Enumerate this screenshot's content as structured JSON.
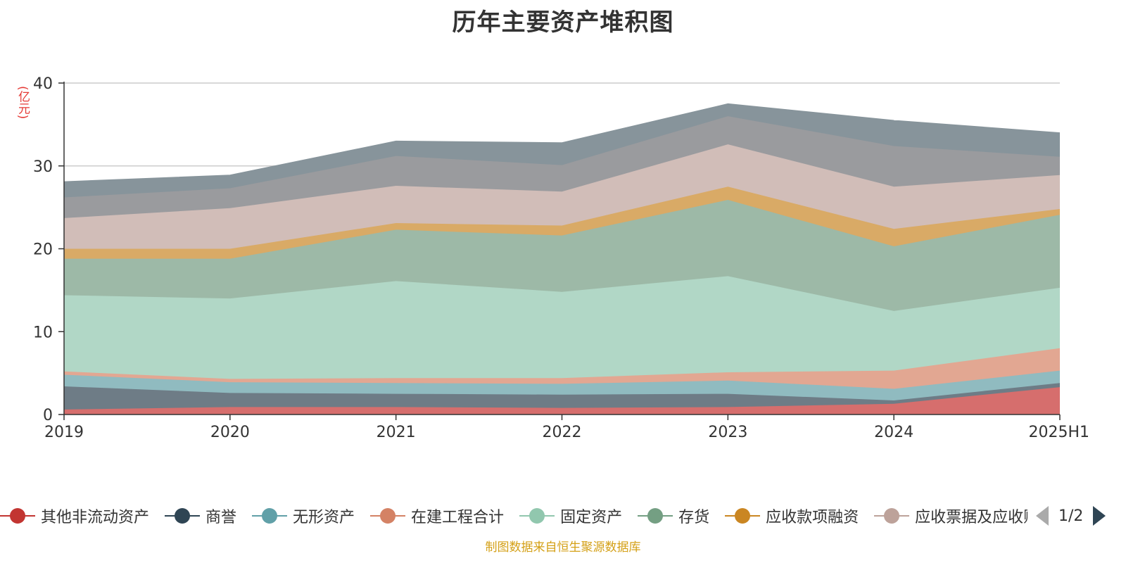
{
  "chart_data": {
    "type": "area",
    "stacked": true,
    "title": "历年主要资产堆积图",
    "unit_label": "(亿元)",
    "x": [
      "2019",
      "2020",
      "2021",
      "2022",
      "2023",
      "2024",
      "2025H1"
    ],
    "ylim": [
      0,
      40
    ],
    "yticks": [
      0,
      10,
      20,
      30,
      40
    ],
    "grid": true,
    "legend_position": "bottom",
    "series": [
      {
        "name": "其他非流动资产",
        "color": "#c23531",
        "area_color": "#d66e6d",
        "values": [
          0.6,
          0.9,
          0.9,
          0.8,
          0.9,
          1.3,
          3.3
        ]
      },
      {
        "name": "商誉",
        "color": "#2f4554",
        "area_color": "#6e7c86",
        "values": [
          2.8,
          1.7,
          1.6,
          1.6,
          1.6,
          0.4,
          0.5
        ]
      },
      {
        "name": "无形资产",
        "color": "#61a0a8",
        "area_color": "#90bbc0",
        "values": [
          1.4,
          1.3,
          1.3,
          1.3,
          1.6,
          1.4,
          1.5
        ]
      },
      {
        "name": "在建工程合计",
        "color": "#d48265",
        "area_color": "#e2a792",
        "values": [
          0.4,
          0.4,
          0.6,
          0.7,
          1.0,
          2.2,
          2.7
        ]
      },
      {
        "name": "固定资产",
        "color": "#91c7ae",
        "area_color": "#b1d7c6",
        "values": [
          9.2,
          9.7,
          11.7,
          10.4,
          11.6,
          7.2,
          7.3
        ]
      },
      {
        "name": "存货",
        "color": "#749f83",
        "area_color": "#9db9a7",
        "values": [
          4.4,
          4.8,
          6.2,
          6.8,
          9.2,
          7.8,
          8.8
        ]
      },
      {
        "name": "应收款项融资",
        "color": "#ca8622",
        "area_color": "#d9aa66",
        "values": [
          1.2,
          1.2,
          0.8,
          1.2,
          1.6,
          2.1,
          0.7
        ]
      },
      {
        "name": "应收票据及应收账款",
        "color": "#bda29a",
        "area_color": "#d1bdb8",
        "values": [
          3.7,
          4.9,
          4.5,
          4.1,
          5.1,
          5.1,
          4.1
        ]
      },
      {
        "name": "",
        "color": "#6e7074",
        "area_color": "#9a9b9e",
        "values": [
          2.5,
          2.4,
          3.6,
          3.2,
          3.4,
          4.9,
          2.2
        ]
      },
      {
        "name": "",
        "color": "#546570",
        "area_color": "#87949b",
        "values": [
          1.9,
          1.6,
          1.8,
          2.7,
          1.5,
          3.1,
          2.9
        ]
      }
    ]
  },
  "legend": {
    "pager_text": "1/2"
  },
  "footer": {
    "source": "制图数据来自恒生聚源数据库"
  }
}
